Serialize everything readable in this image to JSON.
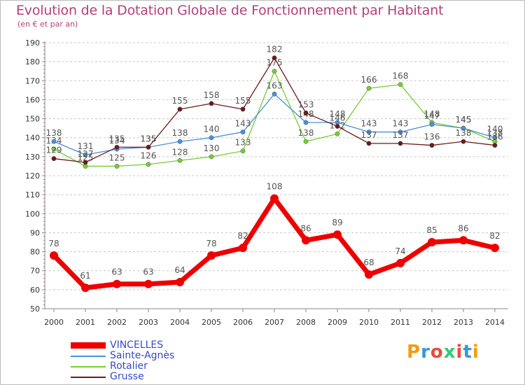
{
  "title": "Evolution de la Dotation Globale de Fonctionnement par Habitant",
  "subtitle": "(en € et par an)",
  "logo": {
    "text": "Proxiti",
    "letters": [
      {
        "ch": "P",
        "color": "#f39c12"
      },
      {
        "ch": "r",
        "color": "#3498db"
      },
      {
        "ch": "o",
        "color": "#e74c3c"
      },
      {
        "ch": "x",
        "color": "#2ecc71"
      },
      {
        "ch": "i",
        "color": "#e74c3c"
      },
      {
        "ch": "t",
        "color": "#3498db"
      },
      {
        "ch": "i",
        "color": "#f39c12"
      }
    ]
  },
  "chart_data": {
    "type": "line",
    "title": "Evolution de la Dotation Globale de Fonctionnement par Habitant",
    "subtitle": "(en € et par an)",
    "xlabel": "",
    "ylabel": "",
    "ylim": [
      50,
      190
    ],
    "yticks": [
      50,
      60,
      70,
      80,
      90,
      100,
      110,
      120,
      130,
      140,
      150,
      160,
      170,
      180,
      190
    ],
    "x": [
      "2000",
      "2001",
      "2002",
      "2003",
      "2004",
      "2005",
      "2006",
      "2007",
      "2008",
      "2009",
      "2010",
      "2011",
      "2012",
      "2013",
      "2014"
    ],
    "grid": "horizontal dashed",
    "legend": "bottom-left",
    "series": [
      {
        "name": "VINCELLES",
        "color": "#ee0000",
        "values": [
          78,
          61,
          63,
          63,
          64,
          78,
          82,
          108,
          86,
          89,
          68,
          74,
          85,
          86,
          82
        ]
      },
      {
        "name": "Sainte-Agnès",
        "color": "#4a90d9",
        "values": [
          138,
          131,
          134,
          135,
          138,
          140,
          143,
          163,
          148,
          148,
          143,
          143,
          147,
          145,
          140
        ]
      },
      {
        "name": "Rotalier",
        "color": "#77cc33",
        "values": [
          134,
          125,
          125,
          126,
          128,
          130,
          133,
          175,
          138,
          142,
          166,
          168,
          148,
          145,
          138
        ]
      },
      {
        "name": "Grusse",
        "color": "#6b1a1a",
        "values": [
          129,
          127,
          135,
          135,
          155,
          158,
          155,
          182,
          153,
          146,
          137,
          137,
          136,
          138,
          136
        ]
      }
    ]
  }
}
